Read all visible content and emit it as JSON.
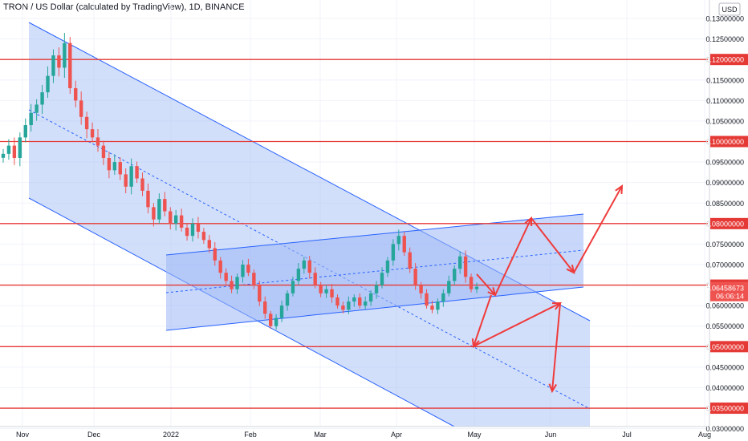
{
  "chart_data": {
    "type": "candlestick",
    "title": "TRON / US Dollar (calculated by TradingView), 1D, BINANCE",
    "currency": "USD",
    "x_ticks": [
      "Nov",
      "Dec",
      "2022",
      "Feb",
      "Mar",
      "Apr",
      "May",
      "Jun",
      "Jul",
      "Aug"
    ],
    "y_ticks": [
      "0.13000000",
      "0.12500000",
      "0.12000000",
      "0.11500000",
      "0.11000000",
      "0.10500000",
      "0.10000000",
      "0.09500000",
      "0.09000000",
      "0.08500000",
      "0.08000000",
      "0.07500000",
      "0.07000000",
      "0.06500000",
      "0.06000000",
      "0.05500000",
      "0.05000000",
      "0.04500000",
      "0.04000000",
      "0.03500000",
      "0.03000000"
    ],
    "y_range": [
      0.027,
      0.1345
    ],
    "horizontal_levels": [
      0.12,
      0.1,
      0.08,
      0.065,
      0.05,
      0.035
    ],
    "level_labels": [
      "0.12000000",
      "0.10000000",
      "0.08000000",
      "0.06500000",
      "0.05000000",
      "0.03500000"
    ],
    "current_price": 0.06458673,
    "current_price_label": "0.06458673",
    "countdown_label": "06:06:14",
    "colors": {
      "up": "#26a69a",
      "down": "#ef5350",
      "level": "#e53935",
      "channel_fill": "#9bb7f5",
      "channel_line": "#2962ff",
      "arrow": "#ef3b3b"
    },
    "candles_approx": {
      "description_key": "daily OHLC sampled",
      "closes": [
        0.097,
        0.099,
        0.096,
        0.101,
        0.104,
        0.107,
        0.109,
        0.112,
        0.116,
        0.121,
        0.118,
        0.124,
        0.113,
        0.11,
        0.106,
        0.103,
        0.101,
        0.099,
        0.096,
        0.093,
        0.095,
        0.092,
        0.089,
        0.094,
        0.091,
        0.088,
        0.084,
        0.081,
        0.086,
        0.083,
        0.08,
        0.082,
        0.079,
        0.077,
        0.08,
        0.078,
        0.076,
        0.074,
        0.071,
        0.068,
        0.066,
        0.064,
        0.067,
        0.07,
        0.068,
        0.065,
        0.061,
        0.058,
        0.055,
        0.057,
        0.06,
        0.063,
        0.066,
        0.069,
        0.071,
        0.068,
        0.065,
        0.063,
        0.064,
        0.062,
        0.06,
        0.059,
        0.061,
        0.062,
        0.06,
        0.061,
        0.063,
        0.065,
        0.068,
        0.071,
        0.075,
        0.077,
        0.073,
        0.069,
        0.065,
        0.063,
        0.06,
        0.059,
        0.061,
        0.063,
        0.066,
        0.069,
        0.072,
        0.067,
        0.064,
        0.0646
      ]
    }
  }
}
